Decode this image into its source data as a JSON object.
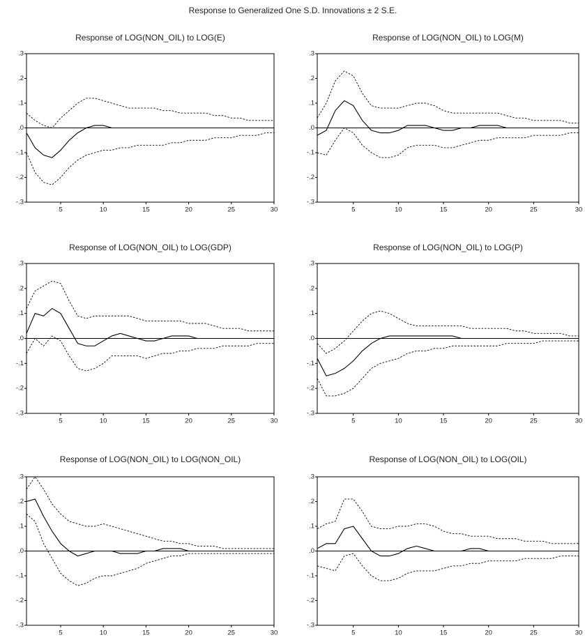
{
  "title": "Response to Generalized One S.D. Innovations ± 2 S.E.",
  "chart_data": [
    {
      "type": "line",
      "title": "Response of LOG(NON_OIL) to LOG(E)",
      "x": [
        1,
        2,
        3,
        4,
        5,
        6,
        7,
        8,
        9,
        10,
        11,
        12,
        13,
        14,
        15,
        16,
        17,
        18,
        19,
        20,
        21,
        22,
        23,
        24,
        25,
        26,
        27,
        28,
        29,
        30
      ],
      "xlim": [
        1,
        30
      ],
      "xticks": [
        5,
        10,
        15,
        20,
        25,
        30
      ],
      "ylim": [
        -0.3,
        0.3
      ],
      "yticks": [
        {
          "value": 0.3,
          "label": ".3"
        },
        {
          "value": 0.2,
          "label": ".2"
        },
        {
          "value": 0.1,
          "label": ".1"
        },
        {
          "value": 0,
          "label": ".0"
        },
        {
          "value": -0.1,
          "label": "-.1"
        },
        {
          "value": -0.2,
          "label": "-.2"
        },
        {
          "value": -0.3,
          "label": "-.3"
        }
      ],
      "zero_line": true,
      "series": [
        {
          "color": "#000000",
          "style": "solid",
          "values": [
            -0.02,
            -0.08,
            -0.11,
            -0.12,
            -0.09,
            -0.05,
            -0.02,
            0,
            0.01,
            0.01,
            0,
            0,
            0,
            0,
            0,
            0,
            0,
            0,
            0,
            0,
            0,
            0,
            0,
            0,
            0,
            0,
            0,
            0,
            0,
            0
          ]
        },
        {
          "color": "#000000",
          "style": "dashed",
          "values": [
            0.06,
            0.03,
            0.01,
            0,
            0.04,
            0.07,
            0.1,
            0.12,
            0.12,
            0.11,
            0.1,
            0.09,
            0.08,
            0.08,
            0.08,
            0.08,
            0.07,
            0.07,
            0.06,
            0.06,
            0.06,
            0.06,
            0.05,
            0.05,
            0.04,
            0.04,
            0.03,
            0.03,
            0.03,
            0.03
          ]
        },
        {
          "color": "#000000",
          "style": "dashed",
          "values": [
            -0.1,
            -0.18,
            -0.22,
            -0.23,
            -0.2,
            -0.16,
            -0.13,
            -0.11,
            -0.1,
            -0.09,
            -0.09,
            -0.08,
            -0.08,
            -0.07,
            -0.07,
            -0.07,
            -0.07,
            -0.06,
            -0.06,
            -0.05,
            -0.05,
            -0.05,
            -0.04,
            -0.04,
            -0.04,
            -0.03,
            -0.03,
            -0.03,
            -0.02,
            -0.02
          ]
        }
      ]
    },
    {
      "type": "line",
      "title": "Response of LOG(NON_OIL) to LOG(M)",
      "x": [
        1,
        2,
        3,
        4,
        5,
        6,
        7,
        8,
        9,
        10,
        11,
        12,
        13,
        14,
        15,
        16,
        17,
        18,
        19,
        20,
        21,
        22,
        23,
        24,
        25,
        26,
        27,
        28,
        29,
        30
      ],
      "xlim": [
        1,
        30
      ],
      "xticks": [
        5,
        10,
        15,
        20,
        25,
        30
      ],
      "ylim": [
        -0.3,
        0.3
      ],
      "yticks": [
        {
          "value": 0.3,
          "label": ".3"
        },
        {
          "value": 0.2,
          "label": ".2"
        },
        {
          "value": 0.1,
          "label": ".1"
        },
        {
          "value": 0,
          "label": ".0"
        },
        {
          "value": -0.1,
          "label": "-.1"
        },
        {
          "value": -0.2,
          "label": "-.2"
        },
        {
          "value": -0.3,
          "label": "-.3"
        }
      ],
      "zero_line": true,
      "series": [
        {
          "color": "#000000",
          "style": "solid",
          "values": [
            -0.03,
            -0.01,
            0.07,
            0.11,
            0.09,
            0.03,
            -0.01,
            -0.02,
            -0.02,
            -0.01,
            0.01,
            0.01,
            0.01,
            0,
            -0.01,
            -0.01,
            0,
            0,
            0.01,
            0.01,
            0.01,
            0,
            0,
            0,
            0,
            0,
            0,
            0,
            0,
            0
          ]
        },
        {
          "color": "#000000",
          "style": "dashed",
          "values": [
            0.04,
            0.1,
            0.19,
            0.23,
            0.21,
            0.14,
            0.09,
            0.08,
            0.08,
            0.08,
            0.09,
            0.1,
            0.1,
            0.09,
            0.07,
            0.06,
            0.06,
            0.06,
            0.06,
            0.06,
            0.06,
            0.05,
            0.04,
            0.04,
            0.03,
            0.03,
            0.03,
            0.03,
            0.02,
            0.02
          ]
        },
        {
          "color": "#000000",
          "style": "dashed",
          "values": [
            -0.1,
            -0.11,
            -0.05,
            0,
            -0.02,
            -0.07,
            -0.1,
            -0.12,
            -0.12,
            -0.11,
            -0.08,
            -0.07,
            -0.07,
            -0.07,
            -0.08,
            -0.08,
            -0.07,
            -0.06,
            -0.05,
            -0.05,
            -0.04,
            -0.04,
            -0.04,
            -0.04,
            -0.03,
            -0.03,
            -0.03,
            -0.03,
            -0.02,
            -0.02
          ]
        }
      ]
    },
    {
      "type": "line",
      "title": "Response of LOG(NON_OIL) to LOG(GDP)",
      "x": [
        1,
        2,
        3,
        4,
        5,
        6,
        7,
        8,
        9,
        10,
        11,
        12,
        13,
        14,
        15,
        16,
        17,
        18,
        19,
        20,
        21,
        22,
        23,
        24,
        25,
        26,
        27,
        28,
        29,
        30
      ],
      "xlim": [
        1,
        30
      ],
      "xticks": [
        5,
        10,
        15,
        20,
        25,
        30
      ],
      "ylim": [
        -0.3,
        0.3
      ],
      "yticks": [
        {
          "value": 0.3,
          "label": ".3"
        },
        {
          "value": 0.2,
          "label": ".2"
        },
        {
          "value": 0.1,
          "label": ".1"
        },
        {
          "value": 0,
          "label": ".0"
        },
        {
          "value": -0.1,
          "label": "-.1"
        },
        {
          "value": -0.2,
          "label": "-.2"
        },
        {
          "value": -0.3,
          "label": "-.3"
        }
      ],
      "zero_line": true,
      "series": [
        {
          "color": "#000000",
          "style": "solid",
          "values": [
            0.02,
            0.1,
            0.09,
            0.12,
            0.1,
            0.04,
            -0.02,
            -0.03,
            -0.03,
            -0.01,
            0.01,
            0.02,
            0.01,
            0,
            -0.01,
            -0.01,
            0,
            0.01,
            0.01,
            0.01,
            0,
            0,
            0,
            0,
            0,
            0,
            0,
            0,
            0,
            0
          ]
        },
        {
          "color": "#000000",
          "style": "dashed",
          "values": [
            0.12,
            0.19,
            0.21,
            0.23,
            0.22,
            0.15,
            0.09,
            0.08,
            0.09,
            0.09,
            0.09,
            0.09,
            0.09,
            0.08,
            0.07,
            0.07,
            0.07,
            0.07,
            0.07,
            0.06,
            0.06,
            0.06,
            0.05,
            0.04,
            0.04,
            0.04,
            0.03,
            0.03,
            0.03,
            0.03
          ]
        },
        {
          "color": "#000000",
          "style": "dashed",
          "values": [
            -0.06,
            0,
            -0.03,
            0.01,
            -0.01,
            -0.07,
            -0.12,
            -0.13,
            -0.12,
            -0.1,
            -0.07,
            -0.07,
            -0.07,
            -0.07,
            -0.08,
            -0.07,
            -0.06,
            -0.06,
            -0.05,
            -0.05,
            -0.04,
            -0.04,
            -0.04,
            -0.03,
            -0.03,
            -0.03,
            -0.03,
            -0.02,
            -0.02,
            -0.02
          ]
        }
      ]
    },
    {
      "type": "line",
      "title": "Response of LOG(NON_OIL) to LOG(P)",
      "x": [
        1,
        2,
        3,
        4,
        5,
        6,
        7,
        8,
        9,
        10,
        11,
        12,
        13,
        14,
        15,
        16,
        17,
        18,
        19,
        20,
        21,
        22,
        23,
        24,
        25,
        26,
        27,
        28,
        29,
        30
      ],
      "xlim": [
        1,
        30
      ],
      "xticks": [
        5,
        10,
        15,
        20,
        25,
        30
      ],
      "ylim": [
        -0.3,
        0.3
      ],
      "yticks": [
        {
          "value": 0.3,
          "label": ".3"
        },
        {
          "value": 0.2,
          "label": ".2"
        },
        {
          "value": 0.1,
          "label": ".1"
        },
        {
          "value": 0,
          "label": ".0"
        },
        {
          "value": -0.1,
          "label": "-.1"
        },
        {
          "value": -0.2,
          "label": "-.2"
        },
        {
          "value": -0.3,
          "label": "-.3"
        }
      ],
      "zero_line": true,
      "series": [
        {
          "color": "#000000",
          "style": "solid",
          "values": [
            -0.08,
            -0.15,
            -0.14,
            -0.12,
            -0.09,
            -0.05,
            -0.02,
            0,
            0.01,
            0.01,
            0.01,
            0.01,
            0.01,
            0.01,
            0.01,
            0.01,
            0,
            0,
            0,
            0,
            0,
            0,
            0,
            0,
            0,
            0,
            0,
            0,
            0,
            0
          ]
        },
        {
          "color": "#000000",
          "style": "dashed",
          "values": [
            -0.02,
            -0.06,
            -0.04,
            -0.01,
            0.03,
            0.07,
            0.1,
            0.11,
            0.1,
            0.08,
            0.06,
            0.05,
            0.05,
            0.05,
            0.05,
            0.05,
            0.05,
            0.04,
            0.04,
            0.04,
            0.04,
            0.04,
            0.03,
            0.03,
            0.02,
            0.02,
            0.02,
            0.02,
            0.01,
            0.01
          ]
        },
        {
          "color": "#000000",
          "style": "dashed",
          "values": [
            -0.16,
            -0.23,
            -0.23,
            -0.22,
            -0.2,
            -0.16,
            -0.12,
            -0.1,
            -0.09,
            -0.08,
            -0.06,
            -0.05,
            -0.05,
            -0.04,
            -0.04,
            -0.03,
            -0.03,
            -0.03,
            -0.03,
            -0.03,
            -0.03,
            -0.02,
            -0.02,
            -0.02,
            -0.02,
            -0.01,
            -0.01,
            -0.01,
            -0.01,
            -0.01
          ]
        }
      ]
    },
    {
      "type": "line",
      "title": "Response of LOG(NON_OIL) to LOG(NON_OIL)",
      "x": [
        1,
        2,
        3,
        4,
        5,
        6,
        7,
        8,
        9,
        10,
        11,
        12,
        13,
        14,
        15,
        16,
        17,
        18,
        19,
        20,
        21,
        22,
        23,
        24,
        25,
        26,
        27,
        28,
        29,
        30
      ],
      "xlim": [
        1,
        30
      ],
      "xticks": [
        5,
        10,
        15,
        20,
        25,
        30
      ],
      "ylim": [
        -0.3,
        0.3
      ],
      "yticks": [
        {
          "value": 0.3,
          "label": ".3"
        },
        {
          "value": 0.2,
          "label": ".2"
        },
        {
          "value": 0.1,
          "label": ".1"
        },
        {
          "value": 0,
          "label": ".0"
        },
        {
          "value": -0.1,
          "label": "-.1"
        },
        {
          "value": -0.2,
          "label": "-.2"
        },
        {
          "value": -0.3,
          "label": "-.3"
        }
      ],
      "zero_line": true,
      "series": [
        {
          "color": "#000000",
          "style": "solid",
          "values": [
            0.2,
            0.21,
            0.14,
            0.08,
            0.03,
            0,
            -0.02,
            -0.01,
            0,
            0,
            0,
            -0.01,
            -0.01,
            -0.01,
            0,
            0,
            0.01,
            0.01,
            0.01,
            0,
            0,
            0,
            0,
            0,
            0,
            0,
            0,
            0,
            0,
            0
          ]
        },
        {
          "color": "#000000",
          "style": "dashed",
          "values": [
            0.25,
            0.3,
            0.25,
            0.19,
            0.15,
            0.12,
            0.11,
            0.1,
            0.1,
            0.11,
            0.1,
            0.09,
            0.08,
            0.07,
            0.06,
            0.05,
            0.04,
            0.04,
            0.03,
            0.03,
            0.02,
            0.02,
            0.02,
            0.01,
            0.01,
            0.01,
            0.01,
            0.01,
            0.01,
            0.01
          ]
        },
        {
          "color": "#000000",
          "style": "dashed",
          "values": [
            0.15,
            0.12,
            0.03,
            -0.03,
            -0.09,
            -0.12,
            -0.14,
            -0.13,
            -0.11,
            -0.1,
            -0.1,
            -0.09,
            -0.08,
            -0.07,
            -0.05,
            -0.04,
            -0.03,
            -0.02,
            -0.02,
            -0.01,
            -0.01,
            -0.01,
            -0.01,
            -0.01,
            -0.01,
            -0.01,
            -0.01,
            -0.01,
            -0.01,
            -0.01
          ]
        }
      ]
    },
    {
      "type": "line",
      "title": "Response of LOG(NON_OIL) to LOG(OIL)",
      "x": [
        1,
        2,
        3,
        4,
        5,
        6,
        7,
        8,
        9,
        10,
        11,
        12,
        13,
        14,
        15,
        16,
        17,
        18,
        19,
        20,
        21,
        22,
        23,
        24,
        25,
        26,
        27,
        28,
        29,
        30
      ],
      "xlim": [
        1,
        30
      ],
      "xticks": [
        5,
        10,
        15,
        20,
        25,
        30
      ],
      "ylim": [
        -0.3,
        0.3
      ],
      "yticks": [
        {
          "value": 0.3,
          "label": ".3"
        },
        {
          "value": 0.2,
          "label": ".2"
        },
        {
          "value": 0.1,
          "label": ".1"
        },
        {
          "value": 0,
          "label": ".0"
        },
        {
          "value": -0.1,
          "label": "-.1"
        },
        {
          "value": -0.2,
          "label": "-.2"
        },
        {
          "value": -0.3,
          "label": "-.3"
        }
      ],
      "zero_line": true,
      "series": [
        {
          "color": "#000000",
          "style": "solid",
          "values": [
            0.01,
            0.03,
            0.03,
            0.09,
            0.1,
            0.05,
            0,
            -0.02,
            -0.02,
            -0.01,
            0.01,
            0.02,
            0.01,
            0,
            0,
            0,
            0,
            0.01,
            0.01,
            0,
            0,
            0,
            0,
            0,
            0,
            0,
            0,
            0,
            0,
            0
          ]
        },
        {
          "color": "#000000",
          "style": "dashed",
          "values": [
            0.09,
            0.11,
            0.12,
            0.21,
            0.21,
            0.16,
            0.1,
            0.09,
            0.09,
            0.1,
            0.1,
            0.11,
            0.11,
            0.1,
            0.08,
            0.07,
            0.07,
            0.06,
            0.06,
            0.06,
            0.05,
            0.05,
            0.05,
            0.04,
            0.04,
            0.04,
            0.03,
            0.03,
            0.03,
            0.03
          ]
        },
        {
          "color": "#000000",
          "style": "dashed",
          "values": [
            -0.06,
            -0.07,
            -0.08,
            -0.02,
            -0.01,
            -0.06,
            -0.1,
            -0.12,
            -0.12,
            -0.11,
            -0.09,
            -0.08,
            -0.08,
            -0.08,
            -0.07,
            -0.06,
            -0.06,
            -0.05,
            -0.05,
            -0.04,
            -0.04,
            -0.04,
            -0.04,
            -0.03,
            -0.03,
            -0.03,
            -0.03,
            -0.02,
            -0.02,
            -0.02
          ]
        }
      ]
    }
  ]
}
